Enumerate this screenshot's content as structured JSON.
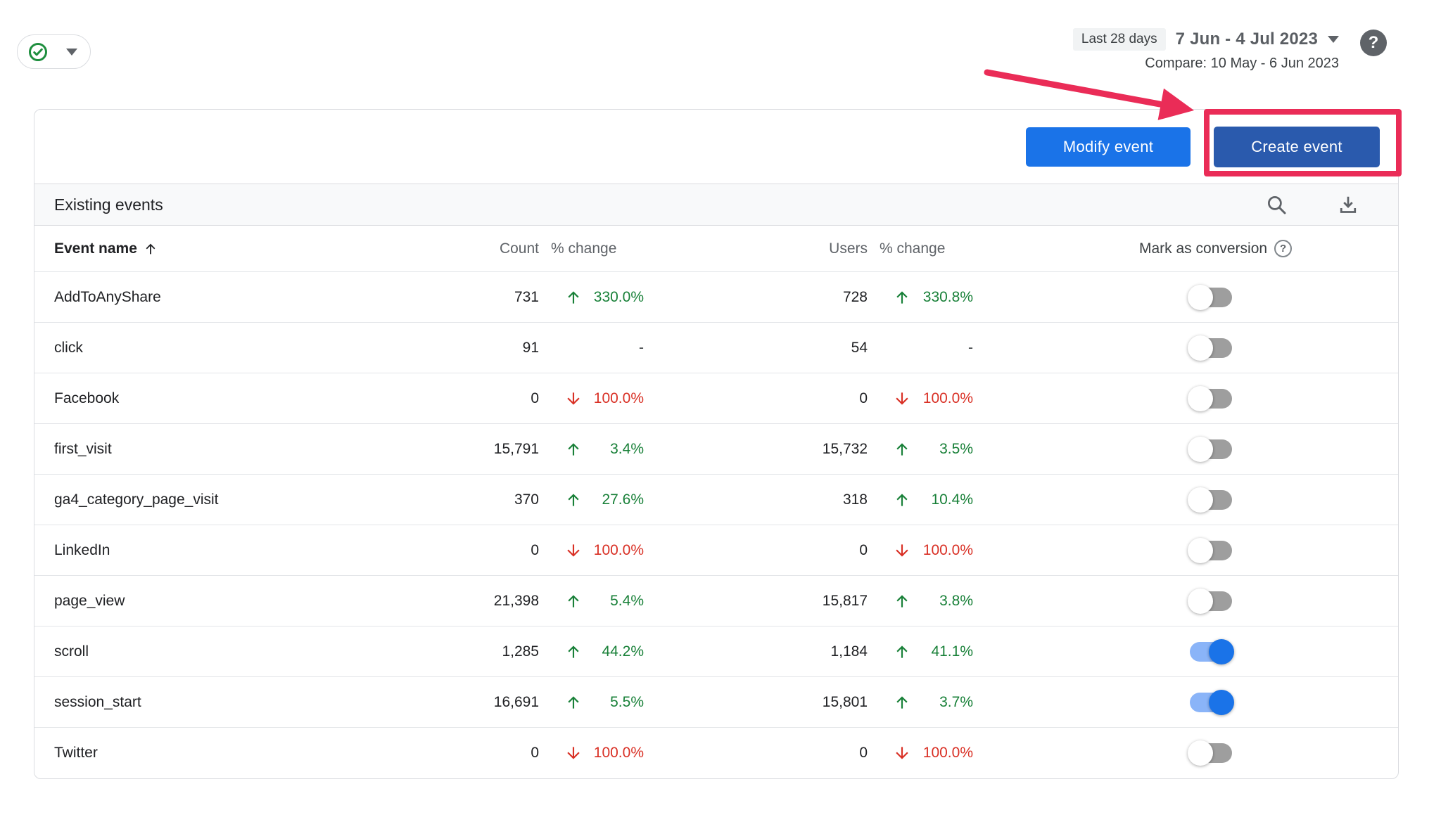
{
  "header": {
    "date_badge": "Last 28 days",
    "date_range": "7 Jun - 4 Jul 2023",
    "compare": "Compare: 10 May - 6 Jun 2023",
    "help_glyph": "?"
  },
  "toolbar": {
    "modify_label": "Modify event",
    "create_label": "Create event"
  },
  "table": {
    "title": "Existing events",
    "columns": {
      "event_name": "Event name",
      "count": "Count",
      "count_change": "% change",
      "users": "Users",
      "users_change": "% change",
      "conversion": "Mark as conversion",
      "conversion_help_glyph": "?"
    },
    "sort": {
      "column": "Event name",
      "direction": "ascending"
    },
    "rows": [
      {
        "name": "AddToAnyShare",
        "count": "731",
        "count_change": "330.0%",
        "count_dir": "up",
        "users": "728",
        "users_change": "330.8%",
        "users_dir": "up",
        "conversion": false
      },
      {
        "name": "click",
        "count": "91",
        "count_change": "-",
        "count_dir": "none",
        "users": "54",
        "users_change": "-",
        "users_dir": "none",
        "conversion": false
      },
      {
        "name": "Facebook",
        "count": "0",
        "count_change": "100.0%",
        "count_dir": "down",
        "users": "0",
        "users_change": "100.0%",
        "users_dir": "down",
        "conversion": false
      },
      {
        "name": "first_visit",
        "count": "15,791",
        "count_change": "3.4%",
        "count_dir": "up",
        "users": "15,732",
        "users_change": "3.5%",
        "users_dir": "up",
        "conversion": false
      },
      {
        "name": "ga4_category_page_visit",
        "count": "370",
        "count_change": "27.6%",
        "count_dir": "up",
        "users": "318",
        "users_change": "10.4%",
        "users_dir": "up",
        "conversion": false
      },
      {
        "name": "LinkedIn",
        "count": "0",
        "count_change": "100.0%",
        "count_dir": "down",
        "users": "0",
        "users_change": "100.0%",
        "users_dir": "down",
        "conversion": false
      },
      {
        "name": "page_view",
        "count": "21,398",
        "count_change": "5.4%",
        "count_dir": "up",
        "users": "15,817",
        "users_change": "3.8%",
        "users_dir": "up",
        "conversion": false
      },
      {
        "name": "scroll",
        "count": "1,285",
        "count_change": "44.2%",
        "count_dir": "up",
        "users": "1,184",
        "users_change": "41.1%",
        "users_dir": "up",
        "conversion": true
      },
      {
        "name": "session_start",
        "count": "16,691",
        "count_change": "5.5%",
        "count_dir": "up",
        "users": "15,801",
        "users_change": "3.7%",
        "users_dir": "up",
        "conversion": true
      },
      {
        "name": "Twitter",
        "count": "0",
        "count_change": "100.0%",
        "count_dir": "down",
        "users": "0",
        "users_change": "100.0%",
        "users_dir": "down",
        "conversion": false
      }
    ]
  },
  "colors": {
    "blue": "#1a73e8",
    "create_blue": "#2a5aad",
    "green": "#188038",
    "red": "#d93025",
    "annotation": "#ea2c57",
    "toggle_on_track": "#8ab4f8",
    "toggle_off_track": "#9e9e9e",
    "check_green": "#1e8e3e"
  }
}
